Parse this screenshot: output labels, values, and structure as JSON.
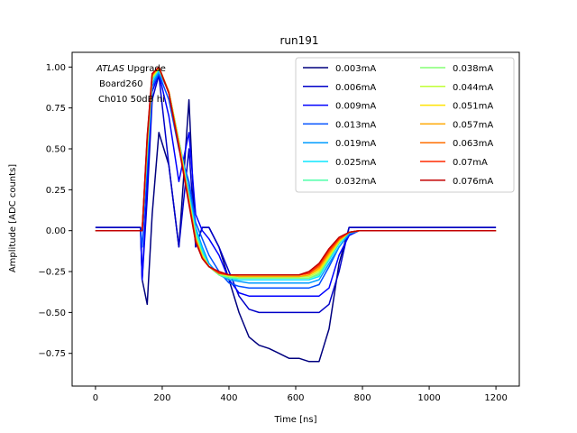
{
  "chart_data": {
    "type": "line",
    "title": "run191",
    "xlabel": "Time [ns]",
    "ylabel": "Amplitude [ADC counts]",
    "xlim": [
      -70,
      1270
    ],
    "ylim": [
      -0.95,
      1.09
    ],
    "xticks": [
      0,
      200,
      400,
      600,
      800,
      1000,
      1200
    ],
    "yticks": [
      -0.75,
      -0.5,
      -0.25,
      0.0,
      0.25,
      0.5,
      0.75,
      1.0
    ],
    "xtick_labels": [
      "0",
      "200",
      "400",
      "600",
      "800",
      "1000",
      "1200"
    ],
    "ytick_labels": [
      "−0.75",
      "−0.50",
      "−0.25",
      "0.00",
      "0.25",
      "0.50",
      "0.75",
      "1.00"
    ],
    "grid": false,
    "legend_position": "upper right",
    "legend_columns": 2,
    "annotation": {
      "line1_italic": "ATLAS",
      "line1_rest": " Upgrade",
      "line2": "Board260",
      "line3": "Ch010 50dB hi"
    },
    "series": [
      {
        "name": "0.003mA",
        "color": "#00007f",
        "y": [
          0.02,
          0.02,
          0.02,
          0.02,
          0.02,
          0.02,
          -0.3,
          -0.45,
          0.1,
          0.6,
          0.4,
          -0.1,
          0.8,
          -0.1,
          0.02,
          0.02,
          -0.1,
          -0.3,
          -0.5,
          -0.65,
          -0.7,
          -0.72,
          -0.75,
          -0.78,
          -0.78,
          -0.8,
          -0.8,
          -0.6,
          -0.2,
          0.02,
          0.02,
          0.02,
          0.02,
          0.02,
          0.02,
          0.02,
          0.02,
          0.02,
          0.02,
          0.02,
          0.02
        ]
      },
      {
        "name": "0.006mA",
        "color": "#0000c8",
        "y": [
          0.02,
          0.02,
          0.02,
          0.02,
          0.02,
          0.02,
          -0.3,
          0.2,
          0.8,
          0.95,
          0.4,
          -0.1,
          0.5,
          -0.1,
          0.02,
          0.02,
          -0.1,
          -0.25,
          -0.4,
          -0.48,
          -0.5,
          -0.5,
          -0.5,
          -0.5,
          -0.5,
          -0.5,
          -0.5,
          -0.45,
          -0.25,
          0.02,
          0.02,
          0.02,
          0.02,
          0.02,
          0.02,
          0.02,
          0.02,
          0.02,
          0.02,
          0.02,
          0.02
        ]
      },
      {
        "name": "0.009mA",
        "color": "#0000ff",
        "y": [
          0.0,
          0.0,
          0.0,
          0.0,
          0.0,
          0.0,
          -0.3,
          0.3,
          0.85,
          0.96,
          0.7,
          0.3,
          0.6,
          0.1,
          0.0,
          -0.05,
          -0.15,
          -0.3,
          -0.38,
          -0.4,
          -0.4,
          -0.4,
          -0.4,
          -0.4,
          -0.4,
          -0.4,
          -0.4,
          -0.35,
          -0.15,
          -0.03,
          0.0,
          0.0,
          0.0,
          0.0,
          0.0,
          0.0,
          0.0,
          0.0,
          0.0,
          0.0,
          0.0
        ]
      },
      {
        "name": "0.013mA",
        "color": "#0050ff",
        "y": [
          0.0,
          0.0,
          0.0,
          0.0,
          0.0,
          0.0,
          -0.1,
          0.4,
          0.88,
          0.96,
          0.8,
          0.5,
          0.3,
          0.05,
          -0.05,
          -0.15,
          -0.25,
          -0.32,
          -0.34,
          -0.35,
          -0.35,
          -0.35,
          -0.35,
          -0.35,
          -0.35,
          -0.35,
          -0.33,
          -0.22,
          -0.1,
          -0.02,
          0.0,
          0.0,
          0.0,
          0.0,
          0.0,
          0.0,
          0.0,
          0.0,
          0.0,
          0.0,
          0.0
        ]
      },
      {
        "name": "0.019mA",
        "color": "#009cff",
        "y": [
          0.0,
          0.0,
          0.0,
          0.0,
          0.0,
          0.0,
          0.0,
          0.45,
          0.9,
          0.97,
          0.85,
          0.55,
          0.25,
          0.02,
          -0.1,
          -0.2,
          -0.27,
          -0.3,
          -0.31,
          -0.32,
          -0.32,
          -0.32,
          -0.32,
          -0.32,
          -0.32,
          -0.32,
          -0.3,
          -0.2,
          -0.1,
          -0.02,
          0.0,
          0.0,
          0.0,
          0.0,
          0.0,
          0.0,
          0.0,
          0.0,
          0.0,
          0.0,
          0.0
        ]
      },
      {
        "name": "0.025mA",
        "color": "#0de5ff",
        "y": [
          0.0,
          0.0,
          0.0,
          0.0,
          0.0,
          0.0,
          0.0,
          0.5,
          0.92,
          0.98,
          0.85,
          0.55,
          0.22,
          0.0,
          -0.12,
          -0.22,
          -0.27,
          -0.29,
          -0.3,
          -0.3,
          -0.3,
          -0.3,
          -0.3,
          -0.3,
          -0.3,
          -0.3,
          -0.28,
          -0.18,
          -0.08,
          -0.01,
          0.0,
          0.0,
          0.0,
          0.0,
          0.0,
          0.0,
          0.0,
          0.0,
          0.0,
          0.0,
          0.0
        ]
      },
      {
        "name": "0.032mA",
        "color": "#4dffa9",
        "y": [
          0.0,
          0.0,
          0.0,
          0.0,
          0.0,
          0.0,
          0.0,
          0.5,
          0.93,
          0.99,
          0.85,
          0.55,
          0.2,
          -0.02,
          -0.14,
          -0.22,
          -0.27,
          -0.29,
          -0.29,
          -0.29,
          -0.29,
          -0.29,
          -0.29,
          -0.29,
          -0.29,
          -0.29,
          -0.27,
          -0.17,
          -0.07,
          -0.01,
          0.0,
          0.0,
          0.0,
          0.0,
          0.0,
          0.0,
          0.0,
          0.0,
          0.0,
          0.0,
          0.0
        ]
      },
      {
        "name": "0.038mA",
        "color": "#83ff73",
        "y": [
          0.0,
          0.0,
          0.0,
          0.0,
          0.0,
          0.0,
          0.0,
          0.52,
          0.93,
          0.99,
          0.85,
          0.55,
          0.2,
          -0.03,
          -0.15,
          -0.22,
          -0.27,
          -0.28,
          -0.29,
          -0.29,
          -0.29,
          -0.29,
          -0.29,
          -0.29,
          -0.29,
          -0.29,
          -0.26,
          -0.16,
          -0.07,
          -0.01,
          0.0,
          0.0,
          0.0,
          0.0,
          0.0,
          0.0,
          0.0,
          0.0,
          0.0,
          0.0,
          0.0
        ]
      },
      {
        "name": "0.044mA",
        "color": "#c0ff36",
        "y": [
          0.0,
          0.0,
          0.0,
          0.0,
          0.0,
          0.0,
          0.0,
          0.53,
          0.94,
          0.99,
          0.85,
          0.54,
          0.19,
          -0.04,
          -0.15,
          -0.22,
          -0.26,
          -0.28,
          -0.28,
          -0.28,
          -0.28,
          -0.28,
          -0.28,
          -0.28,
          -0.28,
          -0.28,
          -0.25,
          -0.16,
          -0.07,
          -0.01,
          0.0,
          0.0,
          0.0,
          0.0,
          0.0,
          0.0,
          0.0,
          0.0,
          0.0,
          0.0,
          0.0
        ]
      },
      {
        "name": "0.051mA",
        "color": "#ffe200",
        "y": [
          0.0,
          0.0,
          0.0,
          0.0,
          0.0,
          0.0,
          0.0,
          0.54,
          0.94,
          1.0,
          0.85,
          0.54,
          0.18,
          -0.05,
          -0.16,
          -0.22,
          -0.26,
          -0.27,
          -0.28,
          -0.28,
          -0.28,
          -0.28,
          -0.28,
          -0.28,
          -0.28,
          -0.27,
          -0.24,
          -0.15,
          -0.06,
          -0.01,
          0.0,
          0.0,
          0.0,
          0.0,
          0.0,
          0.0,
          0.0,
          0.0,
          0.0,
          0.0,
          0.0
        ]
      },
      {
        "name": "0.057mA",
        "color": "#ffa700",
        "y": [
          0.0,
          0.0,
          0.0,
          0.0,
          0.0,
          0.0,
          0.0,
          0.55,
          0.95,
          1.0,
          0.85,
          0.53,
          0.18,
          -0.05,
          -0.16,
          -0.22,
          -0.26,
          -0.27,
          -0.28,
          -0.28,
          -0.28,
          -0.28,
          -0.28,
          -0.28,
          -0.28,
          -0.27,
          -0.23,
          -0.14,
          -0.06,
          -0.01,
          0.0,
          0.0,
          0.0,
          0.0,
          0.0,
          0.0,
          0.0,
          0.0,
          0.0,
          0.0,
          0.0
        ]
      },
      {
        "name": "0.063mA",
        "color": "#ff6e00",
        "y": [
          0.0,
          0.0,
          0.0,
          0.0,
          0.0,
          0.0,
          0.0,
          0.56,
          0.95,
          1.0,
          0.84,
          0.52,
          0.17,
          -0.06,
          -0.17,
          -0.22,
          -0.26,
          -0.27,
          -0.27,
          -0.27,
          -0.27,
          -0.27,
          -0.27,
          -0.27,
          -0.27,
          -0.26,
          -0.22,
          -0.13,
          -0.05,
          -0.01,
          0.0,
          0.0,
          0.0,
          0.0,
          0.0,
          0.0,
          0.0,
          0.0,
          0.0,
          0.0,
          0.0
        ]
      },
      {
        "name": "0.07mA",
        "color": "#ff2a00",
        "y": [
          0.0,
          0.0,
          0.0,
          0.0,
          0.0,
          0.0,
          0.0,
          0.57,
          0.96,
          1.0,
          0.84,
          0.52,
          0.17,
          -0.06,
          -0.17,
          -0.22,
          -0.26,
          -0.27,
          -0.27,
          -0.27,
          -0.27,
          -0.27,
          -0.27,
          -0.27,
          -0.27,
          -0.26,
          -0.21,
          -0.12,
          -0.05,
          -0.01,
          0.0,
          0.0,
          0.0,
          0.0,
          0.0,
          0.0,
          0.0,
          0.0,
          0.0,
          0.0,
          0.0
        ]
      },
      {
        "name": "0.076mA",
        "color": "#c30000",
        "y": [
          0.0,
          0.0,
          0.0,
          0.0,
          0.0,
          0.0,
          0.0,
          0.58,
          0.96,
          1.0,
          0.84,
          0.51,
          0.16,
          -0.07,
          -0.17,
          -0.22,
          -0.25,
          -0.27,
          -0.27,
          -0.27,
          -0.27,
          -0.27,
          -0.27,
          -0.27,
          -0.27,
          -0.25,
          -0.2,
          -0.11,
          -0.04,
          -0.01,
          0.0,
          0.0,
          0.0,
          0.0,
          0.0,
          0.0,
          0.0,
          0.0,
          0.0,
          0.0,
          0.0
        ]
      }
    ],
    "x": [
      0,
      30,
      60,
      90,
      120,
      135,
      140,
      155,
      170,
      190,
      220,
      250,
      280,
      300,
      320,
      340,
      370,
      400,
      430,
      460,
      490,
      520,
      550,
      580,
      610,
      640,
      670,
      700,
      730,
      760,
      790,
      820,
      850,
      880,
      910,
      950,
      1000,
      1050,
      1100,
      1150,
      1200
    ]
  }
}
